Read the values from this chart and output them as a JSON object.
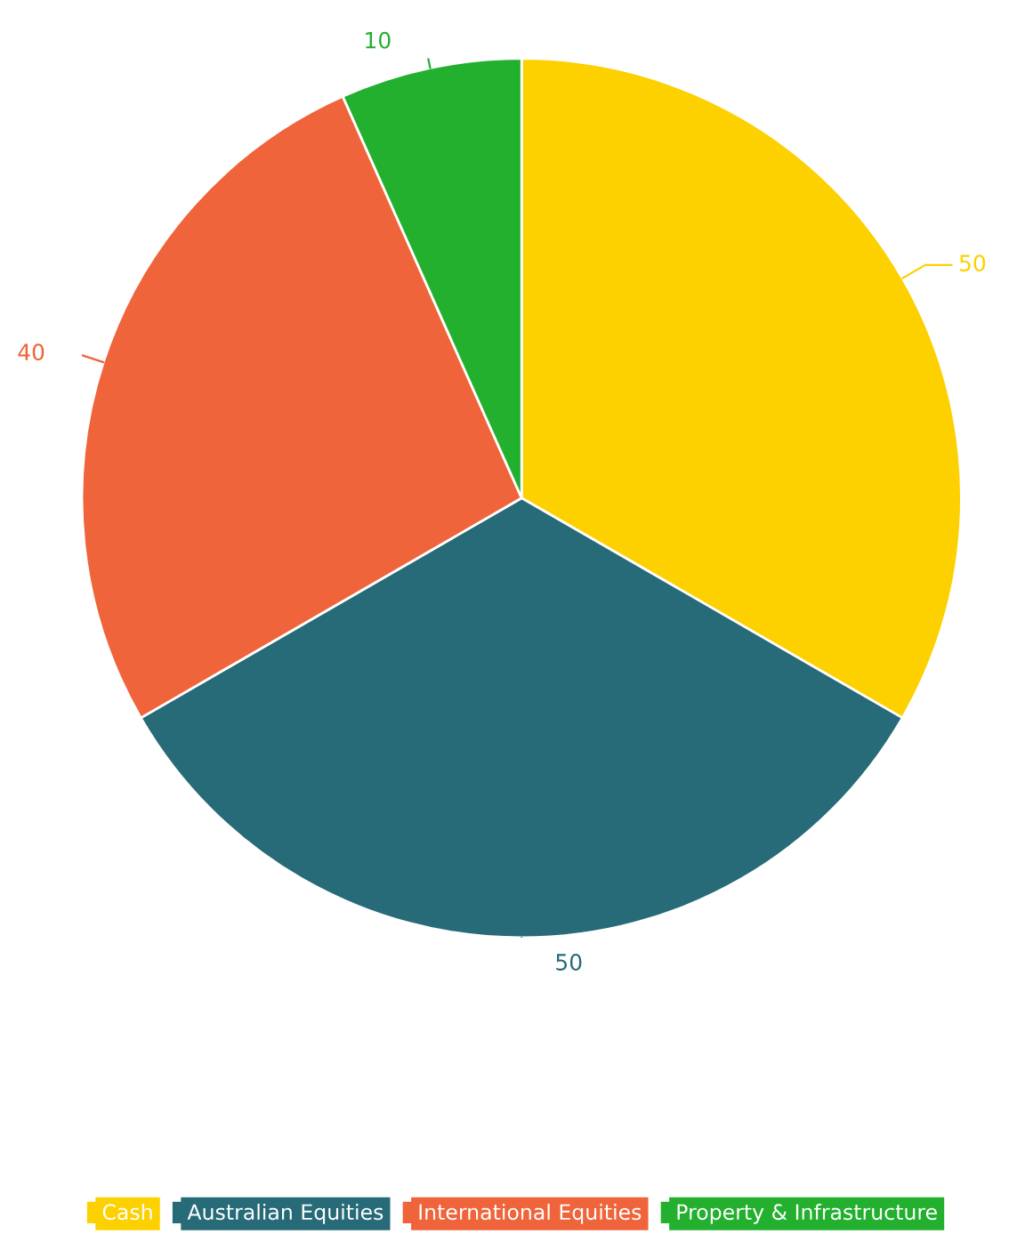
{
  "chart_data": {
    "type": "pie",
    "categories": [
      "Cash",
      "Australian Equities",
      "International Equities",
      "Property & Infrastructure"
    ],
    "values": [
      50,
      50,
      40,
      10
    ],
    "colors": [
      "#fdd000",
      "#276b78",
      "#ef643a",
      "#22b02e"
    ],
    "data_labels": true,
    "legend": "bottom"
  }
}
